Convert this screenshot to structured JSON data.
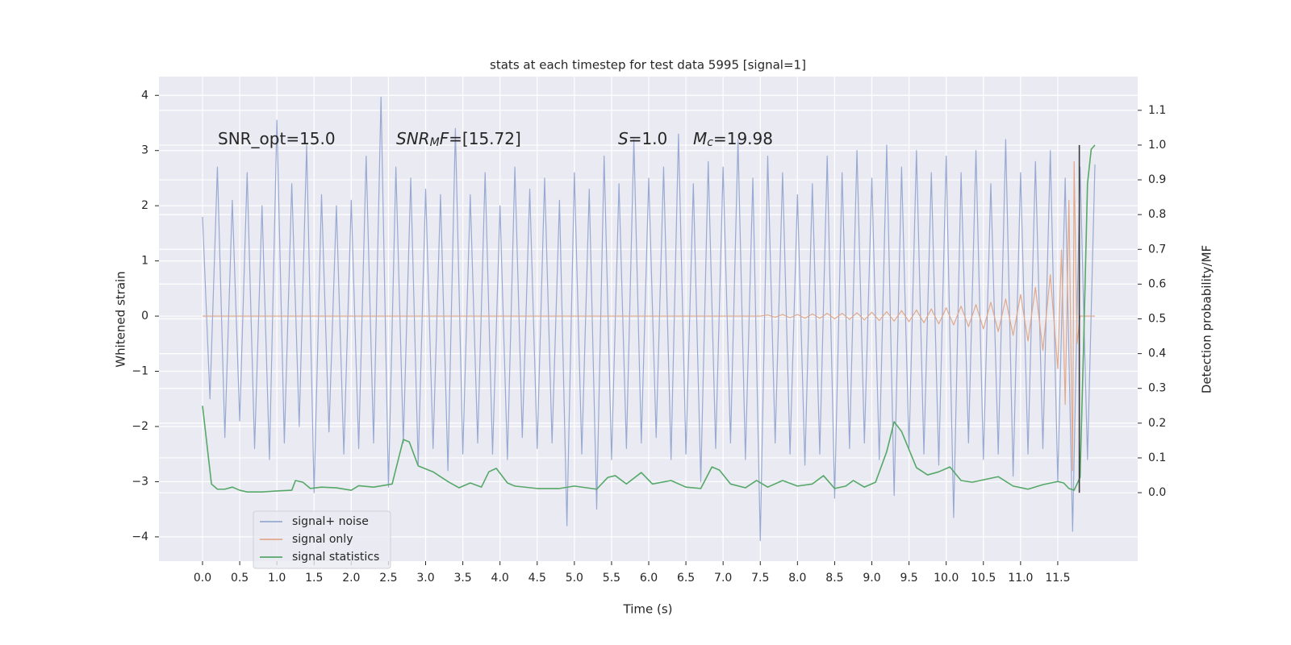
{
  "chart_data": {
    "type": "line",
    "title": "stats at each timestep for test data 5995 [signal=1]",
    "xlabel": "Time (s)",
    "ylabel": "Whitened strain",
    "y2label": "Detection probability/MF",
    "xlim": [
      -0.586,
      12.575
    ],
    "ylim": [
      -4.44,
      4.34
    ],
    "y2lim": [
      -0.197,
      1.197
    ],
    "xticks": [
      {
        "value": 0,
        "label": "0.0"
      },
      0.5,
      {
        "value": 1,
        "label": "1.0"
      },
      1.5,
      {
        "value": 2,
        "label": "2.0"
      },
      2.5,
      {
        "value": 3,
        "label": "3.0"
      },
      3.5,
      {
        "value": 4,
        "label": "4.0"
      },
      4.5,
      {
        "value": 5,
        "label": "5.0"
      },
      5.5,
      {
        "value": 6,
        "label": "6.0"
      },
      6.5,
      {
        "value": 7,
        "label": "7.0"
      },
      7.5,
      {
        "value": 8,
        "label": "8.0"
      },
      8.5,
      {
        "value": 9,
        "label": "9.0"
      },
      9.5,
      {
        "value": 10,
        "label": "10.0"
      },
      10.5,
      {
        "value": 11,
        "label": "11.0"
      },
      11.5
    ],
    "yticks": [
      {
        "value": -4,
        "label": "−4"
      },
      {
        "value": -3,
        "label": "−3"
      },
      {
        "value": -2,
        "label": "−2"
      },
      {
        "value": -1,
        "label": "−1"
      },
      0,
      1,
      2,
      3,
      4
    ],
    "y2ticks": [
      {
        "value": 0,
        "label": "0.0"
      },
      {
        "value": 0.1,
        "label": "0.1"
      },
      {
        "value": 0.2,
        "label": "0.2"
      },
      {
        "value": 0.3,
        "label": "0.3"
      },
      {
        "value": 0.4,
        "label": "0.4"
      },
      {
        "value": 0.5,
        "label": "0.5"
      },
      {
        "value": 0.6,
        "label": "0.6"
      },
      {
        "value": 0.7,
        "label": "0.7"
      },
      {
        "value": 0.8,
        "label": "0.8"
      },
      {
        "value": 0.9,
        "label": "0.9"
      },
      {
        "value": 1,
        "label": "1.0"
      },
      {
        "value": 1.1,
        "label": "1.1"
      }
    ],
    "grid": true,
    "legend": "lower left",
    "series": [
      {
        "name": "signal+ noise",
        "color": "#98a9d2",
        "x": [
          0,
          0.1,
          0.2,
          0.3,
          0.4,
          0.5,
          0.6,
          0.7,
          0.8,
          0.9,
          1,
          1.1,
          1.2,
          1.3,
          1.4,
          1.5,
          1.6,
          1.7,
          1.8,
          1.9,
          2,
          2.1,
          2.2,
          2.3,
          2.4,
          2.5,
          2.6,
          2.7,
          2.8,
          2.9,
          3,
          3.1,
          3.2,
          3.3,
          3.4,
          3.5,
          3.6,
          3.7,
          3.8,
          3.9,
          4,
          4.1,
          4.2,
          4.3,
          4.4,
          4.5,
          4.6,
          4.7,
          4.8,
          4.9,
          5,
          5.1,
          5.2,
          5.3,
          5.4,
          5.5,
          5.6,
          5.7,
          5.8,
          5.9,
          6,
          6.1,
          6.2,
          6.3,
          6.4,
          6.5,
          6.6,
          6.7,
          6.8,
          6.9,
          7,
          7.1,
          7.2,
          7.3,
          7.4,
          7.5,
          7.6,
          7.7,
          7.8,
          7.9,
          8,
          8.1,
          8.2,
          8.3,
          8.4,
          8.5,
          8.6,
          8.7,
          8.8,
          8.9,
          9,
          9.1,
          9.2,
          9.3,
          9.4,
          9.5,
          9.6,
          9.7,
          9.8,
          9.9,
          10,
          10.1,
          10.2,
          10.3,
          10.4,
          10.5,
          10.6,
          10.7,
          10.8,
          10.9,
          11,
          11.1,
          11.2,
          11.3,
          11.4,
          11.5,
          11.6,
          11.7,
          11.8,
          11.9,
          12
        ],
        "values": [
          1.8,
          -1.5,
          2.7,
          -2.2,
          2.1,
          -1.9,
          2.6,
          -2.4,
          2.0,
          -2.6,
          3.55,
          -2.3,
          2.4,
          -2.0,
          3.1,
          -3.2,
          2.2,
          -2.1,
          2.0,
          -2.5,
          2.1,
          -2.4,
          2.9,
          -2.3,
          3.97,
          -3.1,
          2.7,
          -2.3,
          2.5,
          -2.7,
          2.3,
          -2.4,
          2.2,
          -2.8,
          3.4,
          -2.5,
          2.2,
          -2.3,
          2.6,
          -2.5,
          2.0,
          -2.6,
          2.7,
          -2.2,
          2.3,
          -2.4,
          2.5,
          -2.3,
          2.1,
          -3.8,
          2.6,
          -2.5,
          2.3,
          -3.5,
          2.9,
          -2.6,
          2.4,
          -2.4,
          3.2,
          -2.3,
          2.5,
          -2.2,
          2.7,
          -2.6,
          3.3,
          -2.5,
          2.4,
          -3.0,
          2.8,
          -2.4,
          2.7,
          -2.3,
          3.2,
          -2.6,
          2.5,
          -4.07,
          2.9,
          -2.3,
          2.6,
          -2.5,
          2.2,
          -2.7,
          2.4,
          -2.5,
          2.9,
          -3.3,
          2.6,
          -2.4,
          3.0,
          -2.3,
          2.5,
          -2.6,
          3.1,
          -3.25,
          2.7,
          -2.4,
          3.0,
          -2.5,
          2.6,
          -2.7,
          2.9,
          -3.65,
          2.6,
          -2.3,
          3.0,
          -2.6,
          2.4,
          -2.5,
          3.2,
          -2.9,
          2.6,
          -2.5,
          2.8,
          -2.4,
          3.0,
          -3.0,
          2.5,
          -3.9,
          2.7,
          -2.6,
          2.75
        ]
      },
      {
        "name": "signal only",
        "color": "#e0a98c",
        "x": [
          0,
          7.5,
          7.6,
          7.7,
          7.8,
          7.9,
          8,
          8.1,
          8.2,
          8.3,
          8.4,
          8.5,
          8.6,
          8.7,
          8.8,
          8.9,
          9,
          9.1,
          9.2,
          9.3,
          9.4,
          9.5,
          9.6,
          9.7,
          9.8,
          9.9,
          10,
          10.1,
          10.2,
          10.3,
          10.4,
          10.5,
          10.6,
          10.7,
          10.8,
          10.9,
          11,
          11.1,
          11.2,
          11.3,
          11.4,
          11.5,
          11.55,
          11.6,
          11.65,
          11.7,
          11.72,
          11.76,
          11.8,
          12
        ],
        "values": [
          0,
          0,
          0.02,
          -0.02,
          0.03,
          -0.03,
          0.03,
          -0.04,
          0.04,
          -0.04,
          0.05,
          -0.05,
          0.05,
          -0.06,
          0.06,
          -0.07,
          0.07,
          -0.08,
          0.08,
          -0.09,
          0.1,
          -0.1,
          0.11,
          -0.12,
          0.13,
          -0.14,
          0.15,
          -0.16,
          0.18,
          -0.19,
          0.21,
          -0.23,
          0.25,
          -0.28,
          0.31,
          -0.35,
          0.39,
          -0.45,
          0.52,
          -0.62,
          0.75,
          -0.95,
          1.2,
          -1.6,
          2.1,
          -2.8,
          2.8,
          -0.5,
          0,
          0
        ]
      },
      {
        "name": "signal statistics",
        "color": "#55a868",
        "axis": "y2",
        "x": [
          0,
          0.12,
          0.2,
          0.3,
          0.4,
          0.5,
          0.6,
          0.8,
          1.0,
          1.2,
          1.25,
          1.35,
          1.45,
          1.6,
          1.8,
          2.0,
          2.1,
          2.3,
          2.55,
          2.7,
          2.78,
          2.9,
          3.1,
          3.3,
          3.45,
          3.6,
          3.75,
          3.85,
          3.95,
          4.1,
          4.2,
          4.5,
          4.8,
          5.0,
          5.3,
          5.45,
          5.55,
          5.7,
          5.9,
          6.05,
          6.3,
          6.5,
          6.7,
          6.85,
          6.95,
          7.1,
          7.3,
          7.45,
          7.6,
          7.8,
          8.0,
          8.2,
          8.35,
          8.5,
          8.65,
          8.75,
          8.9,
          9.05,
          9.2,
          9.3,
          9.4,
          9.6,
          9.75,
          9.9,
          10.05,
          10.2,
          10.35,
          10.5,
          10.7,
          10.9,
          11.1,
          11.3,
          11.5,
          11.58,
          11.65,
          11.72,
          11.8,
          11.85,
          11.9,
          11.95,
          12.0
        ],
        "values": [
          0.25,
          0.025,
          0.01,
          0.01,
          0.016,
          0.007,
          0.002,
          0.002,
          0.005,
          0.007,
          0.035,
          0.03,
          0.012,
          0.016,
          0.014,
          0.007,
          0.02,
          0.016,
          0.025,
          0.153,
          0.146,
          0.077,
          0.06,
          0.032,
          0.014,
          0.028,
          0.016,
          0.06,
          0.07,
          0.028,
          0.019,
          0.012,
          0.012,
          0.019,
          0.01,
          0.044,
          0.049,
          0.025,
          0.058,
          0.025,
          0.035,
          0.016,
          0.012,
          0.074,
          0.065,
          0.025,
          0.014,
          0.035,
          0.016,
          0.035,
          0.019,
          0.025,
          0.049,
          0.012,
          0.019,
          0.035,
          0.016,
          0.03,
          0.118,
          0.204,
          0.176,
          0.072,
          0.051,
          0.06,
          0.074,
          0.035,
          0.03,
          0.037,
          0.046,
          0.019,
          0.01,
          0.023,
          0.032,
          0.028,
          0.012,
          0.007,
          0.044,
          0.443,
          0.889,
          0.988,
          1.0
        ]
      }
    ],
    "vline": {
      "x": 11.79,
      "ymin": 0,
      "ymax": 1,
      "axis": "y2",
      "color": "#3a3a3a"
    },
    "annotations": [
      [
        "SNR_opt=15.0"
      ],
      [
        "SNR",
        "M",
        "F",
        "=[15.72]"
      ],
      [
        "S",
        "=1.0"
      ],
      [
        "M",
        "c",
        "=19.98"
      ]
    ]
  }
}
